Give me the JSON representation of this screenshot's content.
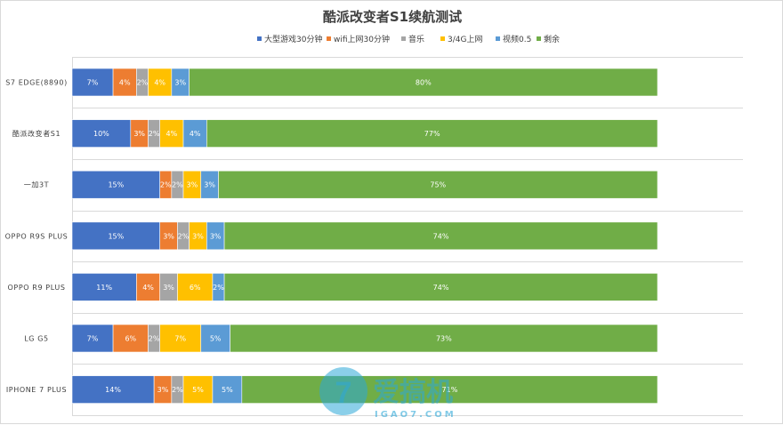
{
  "chart_data": {
    "type": "bar",
    "orientation": "horizontal",
    "stacked": true,
    "percent_stacked": true,
    "title": "酷派改变者S1续航测试",
    "legend_position": "top",
    "grid": true,
    "xlim": [
      0,
      100
    ],
    "categories": [
      "S7 EDGE(8890)",
      "酷派改变者S1",
      "一加3T",
      "OPPO R9S PLUS",
      "OPPO R9 PLUS",
      "LG G5",
      "IPHONE 7 PLUS"
    ],
    "series": [
      {
        "name": "大型游戏30分钟",
        "color": "#4472c4",
        "values": [
          7,
          10,
          15,
          15,
          11,
          7,
          14
        ]
      },
      {
        "name": "wifi上网30分钟",
        "color": "#ed7d31",
        "values": [
          4,
          3,
          2,
          3,
          4,
          6,
          3
        ]
      },
      {
        "name": "音乐",
        "color": "#a5a5a5",
        "values": [
          2,
          2,
          2,
          2,
          3,
          2,
          2
        ]
      },
      {
        "name": "3/4G上网",
        "color": "#ffc000",
        "values": [
          4,
          4,
          3,
          3,
          6,
          7,
          5
        ]
      },
      {
        "name": "视频0.5",
        "color": "#5b9bd5",
        "values": [
          3,
          4,
          3,
          3,
          2,
          5,
          5
        ]
      },
      {
        "name": "剩余",
        "color": "#70ad47",
        "values": [
          80,
          77,
          75,
          74,
          74,
          73,
          71
        ]
      }
    ],
    "watermark": {
      "text": "爱搞机",
      "url_text": "IGAO7.COM",
      "color": "#2ea8d8"
    }
  }
}
